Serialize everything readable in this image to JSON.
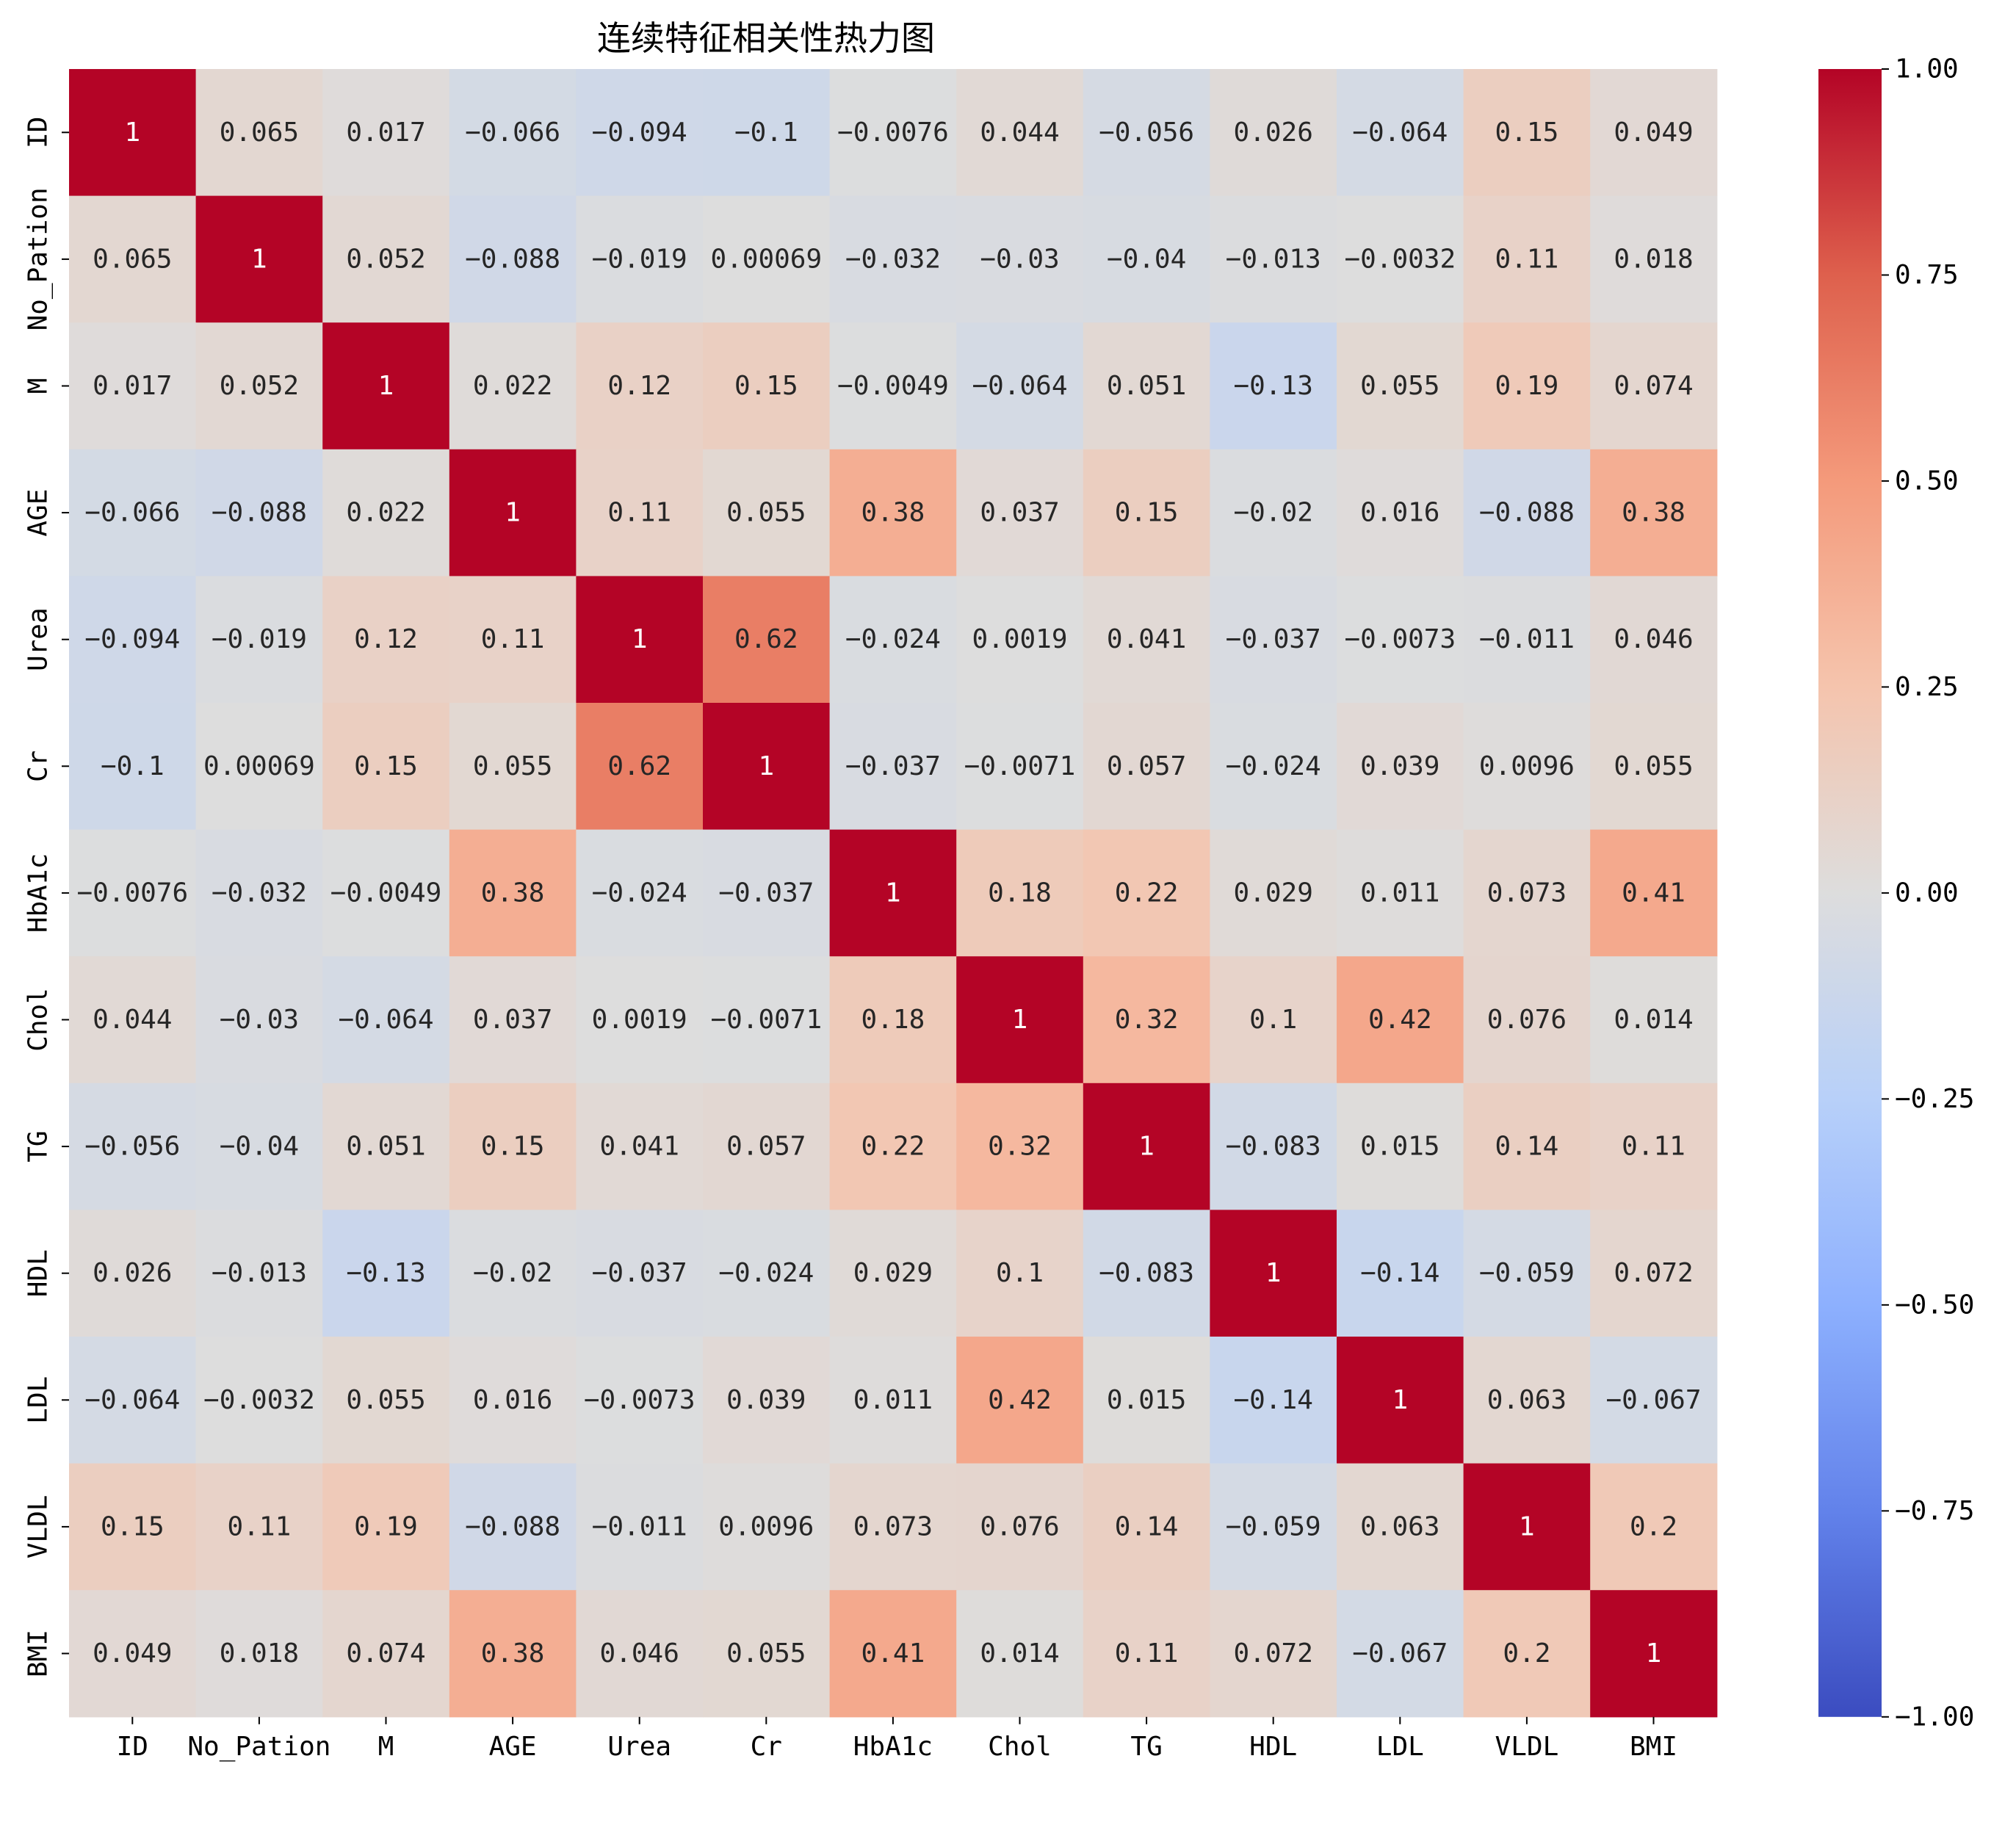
{
  "chart_data": {
    "type": "heatmap",
    "title": "连续特征相关性热力图",
    "xlabel": "",
    "ylabel": "",
    "labels": [
      "ID",
      "No_Pation",
      "M",
      "AGE",
      "Urea",
      "Cr",
      "HbA1c",
      "Chol",
      "TG",
      "HDL",
      "LDL",
      "VLDL",
      "BMI"
    ],
    "matrix": [
      [
        1,
        0.065,
        0.017,
        -0.066,
        -0.094,
        -0.1,
        -0.0076,
        0.044,
        -0.056,
        0.026,
        -0.064,
        0.15,
        0.049
      ],
      [
        0.065,
        1,
        0.052,
        -0.088,
        -0.019,
        0.00069,
        -0.032,
        -0.03,
        -0.04,
        -0.013,
        -0.0032,
        0.11,
        0.018
      ],
      [
        0.017,
        0.052,
        1,
        0.022,
        0.12,
        0.15,
        -0.0049,
        -0.064,
        0.051,
        -0.13,
        0.055,
        0.19,
        0.074
      ],
      [
        -0.066,
        -0.088,
        0.022,
        1,
        0.11,
        0.055,
        0.38,
        0.037,
        0.15,
        -0.02,
        0.016,
        -0.088,
        0.38
      ],
      [
        -0.094,
        -0.019,
        0.12,
        0.11,
        1,
        0.62,
        -0.024,
        0.0019,
        0.041,
        -0.037,
        -0.0073,
        -0.011,
        0.046
      ],
      [
        -0.1,
        0.00069,
        0.15,
        0.055,
        0.62,
        1,
        -0.037,
        -0.0071,
        0.057,
        -0.024,
        0.039,
        0.0096,
        0.055
      ],
      [
        -0.0076,
        -0.032,
        -0.0049,
        0.38,
        -0.024,
        -0.037,
        1,
        0.18,
        0.22,
        0.029,
        0.011,
        0.073,
        0.41
      ],
      [
        0.044,
        -0.03,
        -0.064,
        0.037,
        0.0019,
        -0.0071,
        0.18,
        1,
        0.32,
        0.1,
        0.42,
        0.076,
        0.014
      ],
      [
        -0.056,
        -0.04,
        0.051,
        0.15,
        0.041,
        0.057,
        0.22,
        0.32,
        1,
        -0.083,
        0.015,
        0.14,
        0.11
      ],
      [
        0.026,
        -0.013,
        -0.13,
        -0.02,
        -0.037,
        -0.024,
        0.029,
        0.1,
        -0.083,
        1,
        -0.14,
        -0.059,
        0.072
      ],
      [
        -0.064,
        -0.0032,
        0.055,
        0.016,
        -0.0073,
        0.039,
        0.011,
        0.42,
        0.015,
        -0.14,
        1,
        0.063,
        -0.067
      ],
      [
        0.15,
        0.11,
        0.19,
        -0.088,
        -0.011,
        0.0096,
        0.073,
        0.076,
        0.14,
        -0.059,
        0.063,
        1,
        0.2
      ],
      [
        0.049,
        0.018,
        0.074,
        0.38,
        0.046,
        0.055,
        0.41,
        0.014,
        0.11,
        0.072,
        -0.067,
        0.2,
        1
      ]
    ],
    "cell_labels": [
      [
        "1",
        "0.065",
        "0.017",
        "−0.066",
        "−0.094",
        "−0.1",
        "−0.0076",
        "0.044",
        "−0.056",
        "0.026",
        "−0.064",
        "0.15",
        "0.049"
      ],
      [
        "0.065",
        "1",
        "0.052",
        "−0.088",
        "−0.019",
        "0.00069",
        "−0.032",
        "−0.03",
        "−0.04",
        "−0.013",
        "−0.0032",
        "0.11",
        "0.018"
      ],
      [
        "0.017",
        "0.052",
        "1",
        "0.022",
        "0.12",
        "0.15",
        "−0.0049",
        "−0.064",
        "0.051",
        "−0.13",
        "0.055",
        "0.19",
        "0.074"
      ],
      [
        "−0.066",
        "−0.088",
        "0.022",
        "1",
        "0.11",
        "0.055",
        "0.38",
        "0.037",
        "0.15",
        "−0.02",
        "0.016",
        "−0.088",
        "0.38"
      ],
      [
        "−0.094",
        "−0.019",
        "0.12",
        "0.11",
        "1",
        "0.62",
        "−0.024",
        "0.0019",
        "0.041",
        "−0.037",
        "−0.0073",
        "−0.011",
        "0.046"
      ],
      [
        "−0.1",
        "0.00069",
        "0.15",
        "0.055",
        "0.62",
        "1",
        "−0.037",
        "−0.0071",
        "0.057",
        "−0.024",
        "0.039",
        "0.0096",
        "0.055"
      ],
      [
        "−0.0076",
        "−0.032",
        "−0.0049",
        "0.38",
        "−0.024",
        "−0.037",
        "1",
        "0.18",
        "0.22",
        "0.029",
        "0.011",
        "0.073",
        "0.41"
      ],
      [
        "0.044",
        "−0.03",
        "−0.064",
        "0.037",
        "0.0019",
        "−0.0071",
        "0.18",
        "1",
        "0.32",
        "0.1",
        "0.42",
        "0.076",
        "0.014"
      ],
      [
        "−0.056",
        "−0.04",
        "0.051",
        "0.15",
        "0.041",
        "0.057",
        "0.22",
        "0.32",
        "1",
        "−0.083",
        "0.015",
        "0.14",
        "0.11"
      ],
      [
        "0.026",
        "−0.013",
        "−0.13",
        "−0.02",
        "−0.037",
        "−0.024",
        "0.029",
        "0.1",
        "−0.083",
        "1",
        "−0.14",
        "−0.059",
        "0.072"
      ],
      [
        "−0.064",
        "−0.0032",
        "0.055",
        "0.016",
        "−0.0073",
        "0.039",
        "0.011",
        "0.42",
        "0.015",
        "−0.14",
        "1",
        "0.063",
        "−0.067"
      ],
      [
        "0.15",
        "0.11",
        "0.19",
        "−0.088",
        "−0.011",
        "0.0096",
        "0.073",
        "0.076",
        "0.14",
        "−0.059",
        "0.063",
        "1",
        "0.2"
      ],
      [
        "0.049",
        "0.018",
        "0.074",
        "0.38",
        "0.046",
        "0.055",
        "0.41",
        "0.014",
        "0.11",
        "0.072",
        "−0.067",
        "0.2",
        "1"
      ]
    ],
    "vmin": -1,
    "vmax": 1,
    "colormap": "coolwarm",
    "colorbar": {
      "ticks": [
        1,
        0.75,
        0.5,
        0.25,
        0,
        -0.25,
        -0.5,
        -0.75,
        -1
      ],
      "tick_labels": [
        "1.00",
        "0.75",
        "0.50",
        "0.25",
        "0.00",
        "−0.25",
        "−0.50",
        "−0.75",
        "−1.00"
      ]
    },
    "colors": {
      "light_text": "#ffffff",
      "dark_text": "#262626",
      "low": "#3b4cc0",
      "mid": "#dddddd",
      "high": "#b40426"
    }
  }
}
